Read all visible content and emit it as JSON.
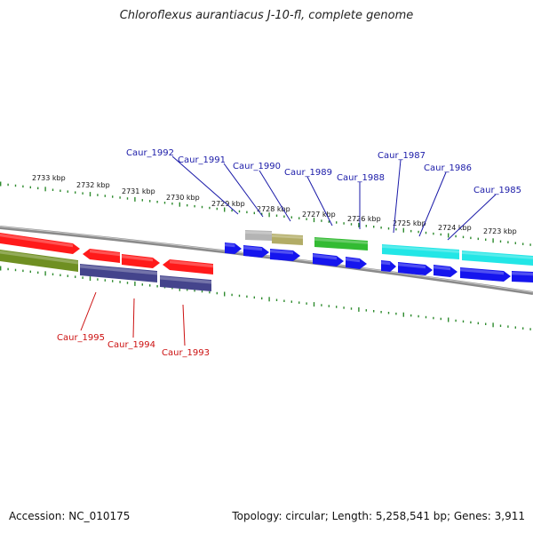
{
  "title": "Chloroflexus aurantiacus J-10-fl, complete genome",
  "footer": {
    "accession": "Accession: NC_010175",
    "summary": "Topology: circular; Length: 5,258,541 bp; Genes: 3,911"
  },
  "colors": {
    "backbone": "#8a8a8a",
    "tick": "#2e8b2e",
    "top_label": "#1a1aa8",
    "bottom_label": "#cc1010",
    "red": "#ff1a1a",
    "olive": "#6f8f22",
    "navy": "#44448c",
    "blue": "#1515ee",
    "gray": "#b4b4b4",
    "khaki": "#b2ac66",
    "green": "#33bb33",
    "cyan": "#22e6e6"
  },
  "scale_labels": [
    "2733 kbp",
    "2732 kbp",
    "2731 kbp",
    "2730 kbp",
    "2729 kbp",
    "2728 kbp",
    "2727 kbp",
    "2726 kbp",
    "2725 kbp",
    "2724 kbp",
    "2723 kbp"
  ],
  "top_genes": [
    "Caur_1992",
    "Caur_1991",
    "Caur_1990",
    "Caur_1989",
    "Caur_1988",
    "Caur_1987",
    "Caur_1986",
    "Caur_1985"
  ],
  "bottom_genes": [
    "Caur_1995",
    "Caur_1994",
    "Caur_1993"
  ]
}
